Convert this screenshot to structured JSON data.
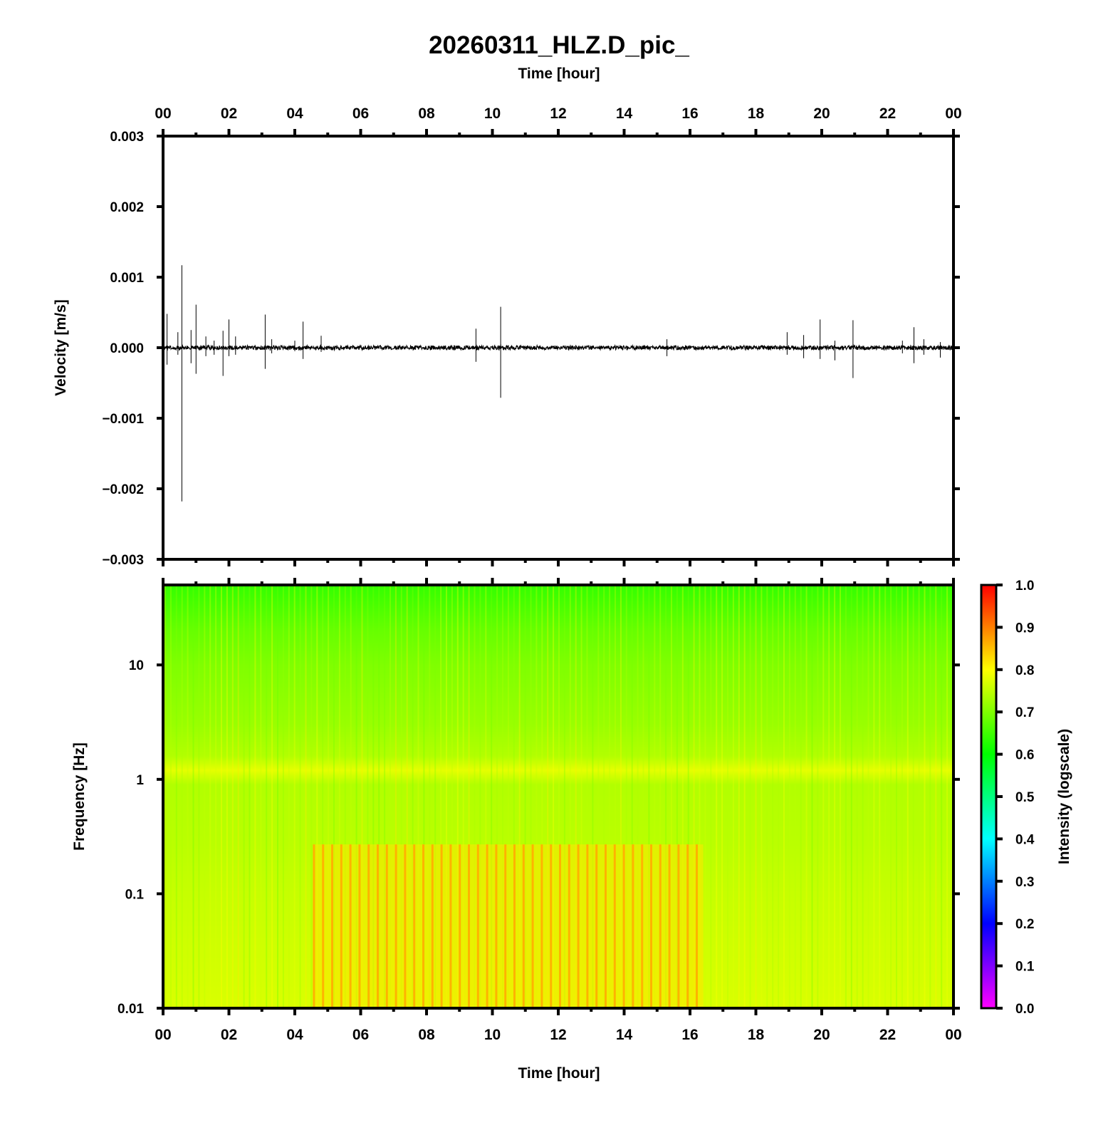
{
  "title": "20260311_HLZ.D_pic_",
  "time_axis_label": "Time [hour]",
  "time_ticks": [
    "00",
    "02",
    "04",
    "06",
    "08",
    "10",
    "12",
    "14",
    "16",
    "18",
    "20",
    "22",
    "00"
  ],
  "chart_data": [
    {
      "type": "line",
      "panel": "waveform",
      "xlabel": "Time [hour]",
      "ylabel": "Velocity [m/s]",
      "xlim": [
        0,
        24
      ],
      "ylim": [
        -0.003,
        0.003
      ],
      "x_tick_labels": [
        "00",
        "02",
        "04",
        "06",
        "08",
        "10",
        "12",
        "14",
        "16",
        "18",
        "20",
        "22",
        "00"
      ],
      "y_tick_values": [
        0.003,
        0.002,
        0.001,
        0.0,
        -0.001,
        -0.002,
        -0.003
      ],
      "y_tick_labels": [
        "0.003",
        "0.002",
        "0.001",
        "0.000",
        "−0.001",
        "−0.002",
        "−0.003"
      ],
      "grid": false,
      "line_color": "#000000",
      "baseline_noise_amplitude": 3e-05,
      "events": [
        {
          "t": 0.12,
          "max": 0.00048,
          "min": -0.00024
        },
        {
          "t": 0.45,
          "max": 0.00022,
          "min": -0.0001
        },
        {
          "t": 0.57,
          "max": 0.00117,
          "min": -0.00218
        },
        {
          "t": 0.85,
          "max": 0.00025,
          "min": -0.00022
        },
        {
          "t": 1.0,
          "max": 0.00061,
          "min": -0.00037
        },
        {
          "t": 1.3,
          "max": 0.00016,
          "min": -0.00012
        },
        {
          "t": 1.55,
          "max": 0.0001,
          "min": -0.0001
        },
        {
          "t": 1.82,
          "max": 0.00024,
          "min": -0.0004
        },
        {
          "t": 2.0,
          "max": 0.0004,
          "min": -0.00012
        },
        {
          "t": 2.2,
          "max": 0.00016,
          "min": -0.0001
        },
        {
          "t": 3.1,
          "max": 0.00047,
          "min": -0.0003
        },
        {
          "t": 3.3,
          "max": 0.00012,
          "min": -8e-05
        },
        {
          "t": 4.0,
          "max": 0.0001,
          "min": -5e-05
        },
        {
          "t": 4.25,
          "max": 0.00037,
          "min": -0.00016
        },
        {
          "t": 4.8,
          "max": 0.00017,
          "min": -6e-05
        },
        {
          "t": 9.5,
          "max": 0.00027,
          "min": -0.0002
        },
        {
          "t": 10.25,
          "max": 0.00058,
          "min": -0.00071
        },
        {
          "t": 15.3,
          "max": 0.00012,
          "min": -0.00012
        },
        {
          "t": 18.95,
          "max": 0.00022,
          "min": -0.0001
        },
        {
          "t": 19.45,
          "max": 0.00018,
          "min": -0.00015
        },
        {
          "t": 19.95,
          "max": 0.0004,
          "min": -0.00016
        },
        {
          "t": 20.4,
          "max": 0.0001,
          "min": -0.00018
        },
        {
          "t": 20.95,
          "max": 0.00039,
          "min": -0.00043
        },
        {
          "t": 22.45,
          "max": 0.0001,
          "min": -8e-05
        },
        {
          "t": 22.8,
          "max": 0.00029,
          "min": -0.00022
        },
        {
          "t": 23.1,
          "max": 0.00012,
          "min": -0.0001
        },
        {
          "t": 23.6,
          "max": 8e-05,
          "min": -0.00014
        }
      ]
    },
    {
      "type": "heatmap",
      "panel": "spectrogram",
      "xlabel": "Time [hour]",
      "ylabel": "Frequency [Hz]",
      "xlim": [
        0,
        24
      ],
      "ylim": [
        0.01,
        50
      ],
      "y_scale": "log",
      "y_tick_values": [
        10,
        1,
        0.1,
        0.01
      ],
      "y_tick_labels": [
        "10",
        "1",
        "0.1",
        "0.01"
      ],
      "colorbar": {
        "label": "Intensity (logscale)",
        "range": [
          0.0,
          1.0
        ],
        "tick_values": [
          1.0,
          0.9,
          0.8,
          0.7,
          0.6,
          0.5,
          0.4,
          0.3,
          0.2,
          0.1,
          0.0
        ],
        "tick_labels": [
          "1.0",
          "0.9",
          "0.8",
          "0.7",
          "0.6",
          "0.5",
          "0.4",
          "0.3",
          "0.2",
          "0.1",
          "0.0"
        ],
        "stops": [
          {
            "v": 0.0,
            "color": "#ff00ff"
          },
          {
            "v": 0.2,
            "color": "#0000ff"
          },
          {
            "v": 0.4,
            "color": "#00ffff"
          },
          {
            "v": 0.6,
            "color": "#00ff00"
          },
          {
            "v": 0.8,
            "color": "#ffff00"
          },
          {
            "v": 1.0,
            "color": "#ff0000"
          }
        ]
      },
      "intensity_profile": [
        {
          "f": 50,
          "v": 0.64
        },
        {
          "f": 20,
          "v": 0.68
        },
        {
          "f": 10,
          "v": 0.7
        },
        {
          "f": 3,
          "v": 0.72
        },
        {
          "f": 1.6,
          "v": 0.74
        },
        {
          "f": 1.2,
          "v": 0.78
        },
        {
          "f": 0.9,
          "v": 0.74
        },
        {
          "f": 0.3,
          "v": 0.745
        },
        {
          "f": 0.1,
          "v": 0.755
        },
        {
          "f": 0.01,
          "v": 0.77
        }
      ],
      "high_intensity_period": {
        "start": 4.55,
        "end": 16.4,
        "f_max": 0.27,
        "v": 0.86
      }
    }
  ]
}
